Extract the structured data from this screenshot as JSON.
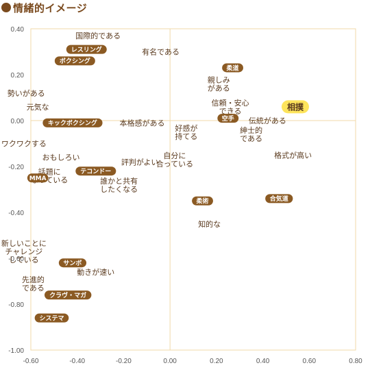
{
  "title": "情緒的イメージ",
  "colors": {
    "title": "#7a4a1e",
    "axis": "#f0d9a8",
    "badge": "#8b5a23",
    "highlight": "#fde45c",
    "text": "#5a3a1e"
  },
  "chart_data": {
    "type": "scatter",
    "title": "情緒的イメージ",
    "xlim": [
      -0.6,
      0.8
    ],
    "ylim": [
      -1.0,
      0.4
    ],
    "xticks": [
      "-0.60",
      "-0.40",
      "-0.20",
      "0.00",
      "0.20",
      "0.40",
      "0.60",
      "0.80"
    ],
    "yticks": [
      "0.40",
      "0.20",
      "0.00",
      "-0.20",
      "-0.40",
      "-0.60",
      "-0.80",
      "-1.00"
    ],
    "grid": false,
    "legend": "none",
    "series": [
      {
        "role": "brands",
        "points": [
          {
            "label": "相撲",
            "x": 0.54,
            "y": 0.06,
            "style": "highlight"
          },
          {
            "label": "柔道",
            "x": 0.27,
            "y": 0.23,
            "style": "badge"
          },
          {
            "label": "空手",
            "x": 0.25,
            "y": 0.01,
            "style": "badge"
          },
          {
            "label": "合気道",
            "x": 0.47,
            "y": -0.34,
            "style": "badge"
          },
          {
            "label": "柔術",
            "x": 0.14,
            "y": -0.35,
            "style": "badge"
          },
          {
            "label": "レスリング",
            "x": -0.36,
            "y": 0.31,
            "style": "badge"
          },
          {
            "label": "ボクシング",
            "x": -0.41,
            "y": 0.26,
            "style": "badge"
          },
          {
            "label": "キックボクシング",
            "x": -0.42,
            "y": -0.01,
            "style": "badge"
          },
          {
            "label": "テコンドー",
            "x": -0.32,
            "y": -0.22,
            "style": "badge"
          },
          {
            "label": "MMA",
            "x": -0.57,
            "y": -0.25,
            "style": "badge"
          },
          {
            "label": "サンボ",
            "x": -0.42,
            "y": -0.62,
            "style": "badge"
          },
          {
            "label": "クラヴ・マガ",
            "x": -0.44,
            "y": -0.76,
            "style": "badge"
          },
          {
            "label": "システマ",
            "x": -0.51,
            "y": -0.86,
            "style": "badge"
          }
        ]
      },
      {
        "role": "attributes",
        "points": [
          {
            "label": "国際的である",
            "x": -0.31,
            "y": 0.37
          },
          {
            "label": "有名である",
            "x": -0.04,
            "y": 0.3
          },
          {
            "label": "勢いがある",
            "x": -0.62,
            "y": 0.12
          },
          {
            "label": "元気な",
            "x": -0.57,
            "y": 0.06
          },
          {
            "label": "親しみ|がある",
            "x": 0.21,
            "y": 0.16
          },
          {
            "label": "信頼・安心|できる",
            "x": 0.26,
            "y": 0.06
          },
          {
            "label": "伝統がある",
            "x": 0.42,
            "y": 0.0
          },
          {
            "label": "本格感がある",
            "x": -0.12,
            "y": -0.01
          },
          {
            "label": "好感が|持てる",
            "x": 0.07,
            "y": -0.05
          },
          {
            "label": "紳士的|である",
            "x": 0.35,
            "y": -0.06
          },
          {
            "label": "ワクワクする",
            "x": -0.63,
            "y": -0.1
          },
          {
            "label": "格式が高い",
            "x": 0.53,
            "y": -0.15
          },
          {
            "label": "おもしろい",
            "x": -0.47,
            "y": -0.16
          },
          {
            "label": "自分に|合っている",
            "x": 0.02,
            "y": -0.17
          },
          {
            "label": "評判がよい",
            "x": -0.13,
            "y": -0.18
          },
          {
            "label": "話題に|なっている",
            "x": -0.52,
            "y": -0.24
          },
          {
            "label": "誰かと共有|したくなる",
            "x": -0.22,
            "y": -0.28
          },
          {
            "label": "知的な",
            "x": 0.17,
            "y": -0.45
          },
          {
            "label": "新しいことに|チャレンジ|している",
            "x": -0.63,
            "y": -0.57
          },
          {
            "label": "動きが速い",
            "x": -0.32,
            "y": -0.66
          },
          {
            "label": "先進的|である",
            "x": -0.59,
            "y": -0.71
          }
        ]
      }
    ]
  }
}
